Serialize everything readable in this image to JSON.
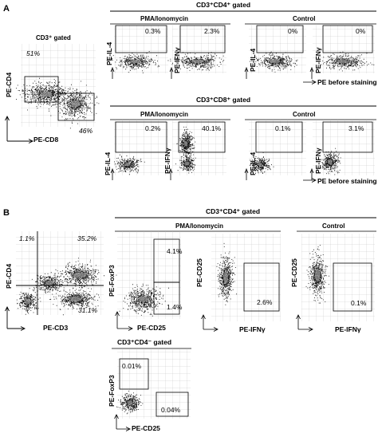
{
  "panelA": {
    "label": "A",
    "overview": {
      "header": "CD3⁺ gated",
      "xlabel": "PE-CD8",
      "ylabel": "PE-CD4",
      "top_pct": "51%",
      "bottom_pct": "46%"
    },
    "cd4_group": {
      "header": "CD3⁺CD4⁺ gated",
      "stim_label": "PMA/Ionomycin",
      "control_label": "Control",
      "xlabel": "PE before staining",
      "plots": [
        {
          "ylabel": "PE-IL-4",
          "pct": "0.3%"
        },
        {
          "ylabel": "PE-IFNγ",
          "pct": "2.3%"
        },
        {
          "ylabel": "PE-IL-4",
          "pct": "0%"
        },
        {
          "ylabel": "PE-IFNγ",
          "pct": "0%"
        }
      ]
    },
    "cd8_group": {
      "header": "CD3⁺CD8⁺ gated",
      "stim_label": "PMA/Ionomycin",
      "control_label": "Control",
      "xlabel": "PE before staining",
      "plots": [
        {
          "ylabel": "PE-IL-4",
          "pct": "0.2%"
        },
        {
          "ylabel": "PE-IFNγ",
          "pct": "40.1%"
        },
        {
          "ylabel": "PE-IL-4",
          "pct": "0.1%"
        },
        {
          "ylabel": "PE-IFNγ",
          "pct": "3.1%"
        }
      ]
    }
  },
  "panelB": {
    "label": "B",
    "overview": {
      "xlabel": "PE-CD3",
      "ylabel": "PE-CD4",
      "q_ul": "1.1%",
      "q_ur": "35.2%",
      "q_lr": "31.1%"
    },
    "cd4_group": {
      "header": "CD3⁺CD4⁺ gated",
      "stim_label": "PMA/Ionomycin",
      "control_label": "Control",
      "foxp3_plot": {
        "xlabel": "PE-CD25",
        "ylabel": "PE-FoxP3",
        "pct_upper": "4.1%",
        "pct_lower": "1.4%"
      },
      "ifng_plot": {
        "xlabel": "PE-IFNγ",
        "ylabel": "PE-CD25",
        "pct": "2.6%"
      },
      "control_plot": {
        "xlabel": "PE-IFNγ",
        "ylabel": "PE-CD25",
        "pct": "0.1%"
      }
    },
    "cd4neg_group": {
      "header": "CD3⁺CD4⁻ gated",
      "plot": {
        "xlabel": "PE-CD25",
        "ylabel": "PE-FoxP3",
        "pct_upper": "0.01%",
        "pct_lower": "0.04%"
      }
    }
  }
}
